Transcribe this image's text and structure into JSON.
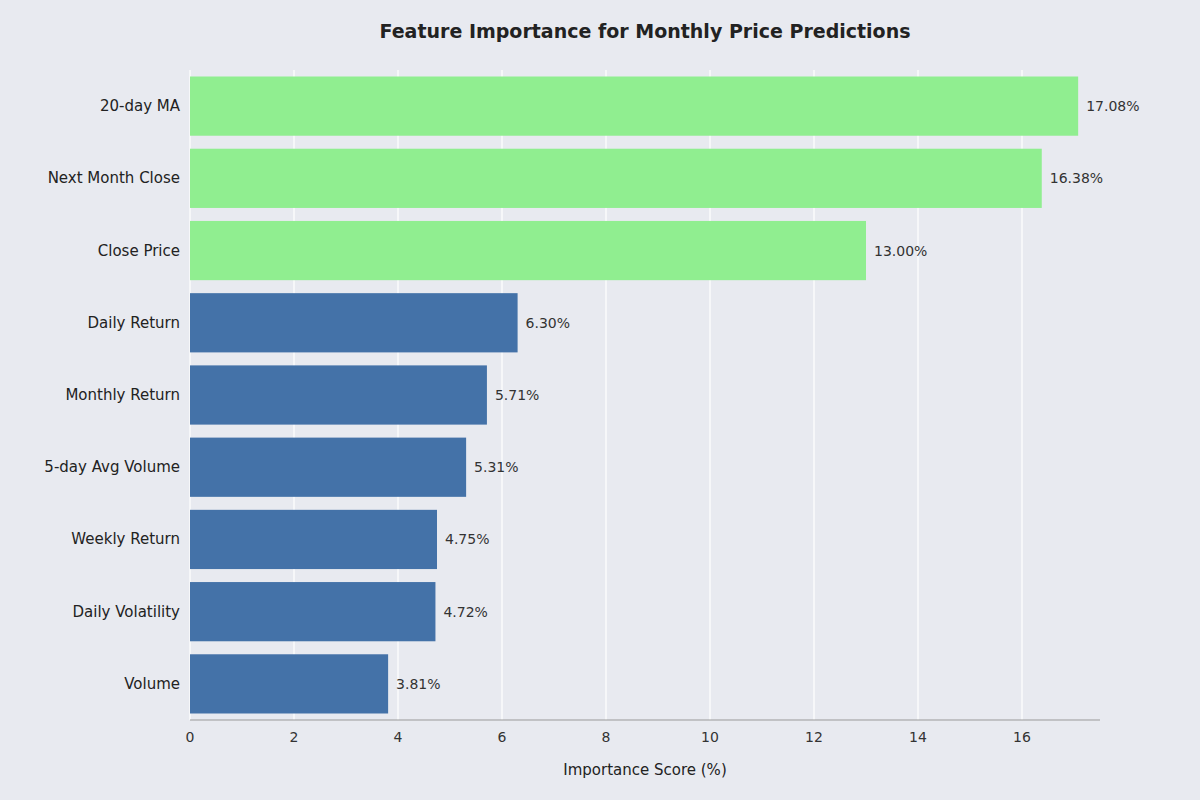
{
  "chart_data": {
    "type": "bar",
    "orientation": "horizontal",
    "title": "Feature Importance for Monthly Price Predictions",
    "xlabel": "Importance Score (%)",
    "categories": [
      "Volume",
      "Daily Volatility",
      "Weekly Return",
      "5-day Avg Volume",
      "Monthly Return",
      "Daily Return",
      "Close Price",
      "Next Month Close",
      "20-day MA"
    ],
    "values": [
      3.81,
      4.72,
      4.75,
      5.31,
      5.71,
      6.3,
      13.0,
      16.38,
      17.08
    ],
    "value_labels": [
      "3.81%",
      "4.72%",
      "4.75%",
      "5.31%",
      "5.71%",
      "6.30%",
      "13.00%",
      "16.38%",
      "17.08%"
    ],
    "data_labels": true,
    "colors": [
      "#4472a8",
      "#4472a8",
      "#4472a8",
      "#4472a8",
      "#4472a8",
      "#4472a8",
      "#90ee90",
      "#90ee90",
      "#90ee90"
    ],
    "xlim": [
      0,
      17.5
    ],
    "xticks": [
      0,
      2,
      4,
      6,
      8,
      10,
      12,
      14,
      16
    ],
    "grid": true
  }
}
